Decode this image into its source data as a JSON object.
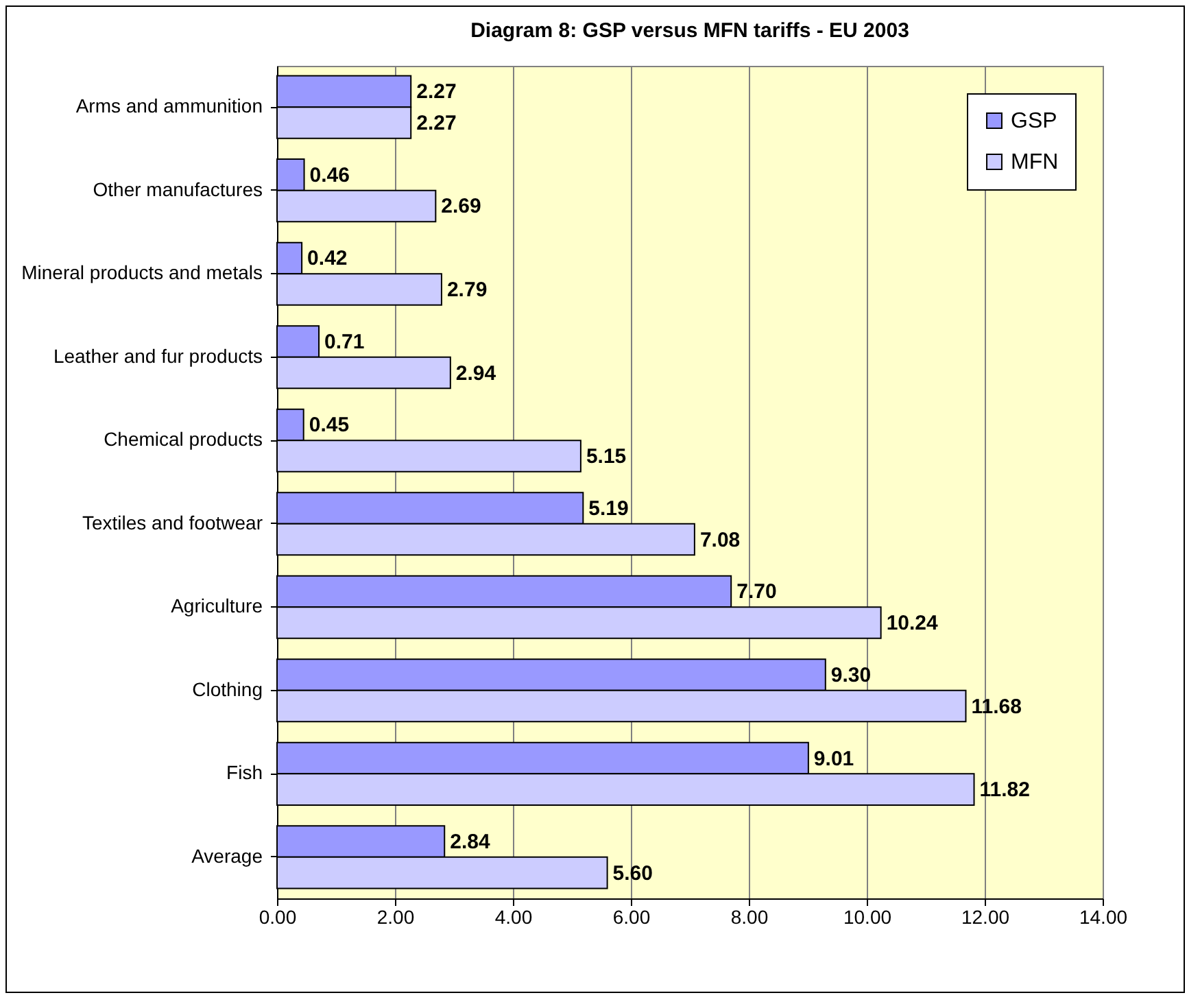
{
  "chart_data": {
    "type": "bar",
    "orientation": "horizontal",
    "title": "Diagram 8: GSP versus MFN tariffs - EU 2003",
    "categories": [
      "Arms and ammunition",
      "Other manufactures",
      "Mineral products and metals",
      "Leather and fur products",
      "Chemical products",
      "Textiles and footwear",
      "Agriculture",
      "Clothing",
      "Fish",
      "Average"
    ],
    "series": [
      {
        "name": "GSP",
        "color": "#9999ff",
        "values": [
          2.27,
          0.46,
          0.42,
          0.71,
          0.45,
          5.19,
          7.7,
          9.3,
          9.01,
          2.84
        ],
        "value_labels": [
          "2.27",
          "0.46",
          "0.42",
          "0.71",
          "0.45",
          "5.19",
          "7.70",
          "9.30",
          "9.01",
          "2.84"
        ]
      },
      {
        "name": "MFN",
        "color": "#ccccff",
        "values": [
          2.27,
          2.69,
          2.79,
          2.94,
          5.15,
          7.08,
          10.24,
          11.68,
          11.82,
          5.6
        ],
        "value_labels": [
          "2.27",
          "2.69",
          "2.79",
          "2.94",
          "5.15",
          "7.08",
          "10.24",
          "11.68",
          "11.82",
          "5.60"
        ]
      }
    ],
    "xlim": [
      0,
      14
    ],
    "xticks": [
      {
        "value": 0,
        "label": "0.00"
      },
      {
        "value": 2,
        "label": "2.00"
      },
      {
        "value": 4,
        "label": "4.00"
      },
      {
        "value": 6,
        "label": "6.00"
      },
      {
        "value": 8,
        "label": "8.00"
      },
      {
        "value": 10,
        "label": "10.00"
      },
      {
        "value": 12,
        "label": "12.00"
      },
      {
        "value": 14,
        "label": "14.00"
      }
    ],
    "grid": "x",
    "legend": "top right"
  }
}
